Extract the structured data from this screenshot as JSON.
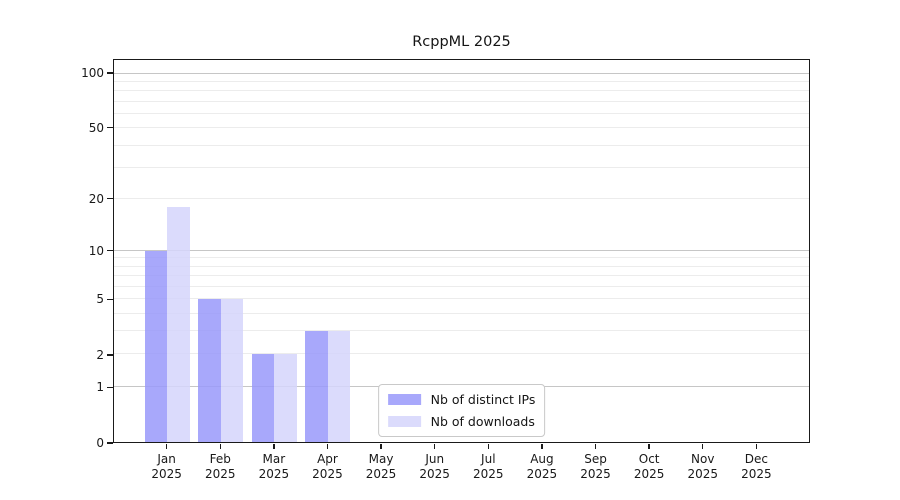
{
  "title": "RcppML 2025",
  "colors": {
    "background": "#ffffff",
    "spine": "#1a1a1a",
    "major_grid": "#c6c6c6",
    "minor_grid": "#ececec",
    "text": "#191919",
    "legend_border": "#c9c9c9",
    "series_distinct_ips": "#9999fa",
    "series_downloads": "#d5d5fc"
  },
  "chart_data": {
    "type": "bar",
    "title": "RcppML 2025",
    "y_scale": "log1p",
    "ylim": [
      0,
      119
    ],
    "y_tick_labels": [
      0,
      1,
      2,
      5,
      10,
      20,
      50,
      100
    ],
    "major_gridlines": [
      1,
      10,
      100
    ],
    "minor_gridlines": [
      2,
      3,
      4,
      5,
      6,
      7,
      8,
      9,
      20,
      30,
      40,
      50,
      60,
      70,
      80,
      90
    ],
    "categories": [
      "Jan",
      "Feb",
      "Mar",
      "Apr",
      "May",
      "Jun",
      "Jul",
      "Aug",
      "Sep",
      "Oct",
      "Nov",
      "Dec"
    ],
    "tick_year": "2025",
    "series": [
      {
        "name": "Nb of distinct IPs",
        "color": "#9999fa",
        "alpha": 0.85,
        "values": [
          10,
          5,
          2,
          3,
          0,
          0,
          0,
          0,
          0,
          0,
          0,
          0
        ]
      },
      {
        "name": "Nb of downloads",
        "color": "#d5d5fc",
        "alpha": 0.85,
        "values": [
          18,
          5,
          2,
          3,
          0,
          0,
          0,
          0,
          0,
          0,
          0,
          0
        ]
      }
    ],
    "legend_position": "lower center",
    "grid": "horizontal",
    "xlabel": "",
    "ylabel": ""
  }
}
